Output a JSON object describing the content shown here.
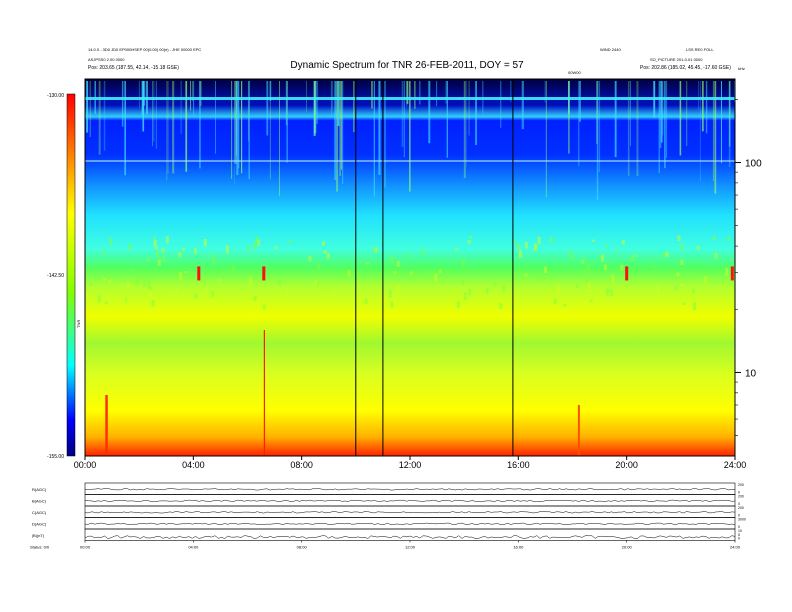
{
  "header": {
    "title": "Dynamic Spectrum for TNR 26-FEB-2011, DOY = 57",
    "left_info_1": "14.0.0 - 3D0 JD0 EP000HSEP 00(0.00) 00(e) - JHE 00000 EPC",
    "left_info_2": "ASJPSS0 2.00 0000",
    "left_pos": "Pos: 203.65 (187.55, 42.14, -15.18 GSE)",
    "right_info_1": "WIND 2440",
    "right_info_2": "LSS RE0 FOLL",
    "right_info_3": "SO_PICTURE 201-0.01 0000",
    "right_pos": "Pos: 202.86 (185.02, 45.45, -17.60 GSE)",
    "center_small": "00W00",
    "right_small": "kHz"
  },
  "chart_data": [
    {
      "type": "heatmap",
      "title": "Dynamic Spectrum for TNR 26-FEB-2011, DOY = 57",
      "x": {
        "ticks": [
          "00:00",
          "04:00",
          "08:00",
          "12:00",
          "16:00",
          "20:00",
          "24:00"
        ],
        "tick_hours": [
          0,
          4,
          8,
          12,
          16,
          20,
          24
        ],
        "range_hours": [
          0,
          24
        ]
      },
      "y_right": {
        "scale": "log",
        "unit": "kHz",
        "ticks": [
          10,
          100
        ],
        "range": [
          4,
          250
        ]
      },
      "colorbar": {
        "label": "TNR",
        "ticks": [
          "-130.00",
          "-142.50",
          "-155.00"
        ],
        "range": [
          -155,
          -130
        ],
        "colors": [
          "#000080",
          "#0000ff",
          "#00ffff",
          "#7fff00",
          "#ffff00",
          "#ff0000"
        ]
      },
      "vertical_lines_hours": [
        10.0,
        11.0,
        15.8
      ],
      "bands": [
        {
          "from": 4.0,
          "to": 5.5,
          "value": -151,
          "note": "red/orange lower band"
        },
        {
          "from": 5.5,
          "to": 15,
          "value": -147,
          "note": "yellow"
        },
        {
          "from": 15,
          "to": 30,
          "value": -143,
          "note": "yellow-green"
        },
        {
          "from": 30,
          "to": 50,
          "value": -140,
          "note": "green"
        },
        {
          "from": 50,
          "to": 110,
          "value": -136,
          "note": "cyan"
        },
        {
          "from": 110,
          "to": 175,
          "value": -132,
          "note": "blue"
        },
        {
          "from": 175,
          "to": 250,
          "value": -130,
          "note": "dark blue / black"
        }
      ],
      "bursts_hours": [
        4.2,
        6.6,
        20.0,
        23.9
      ]
    },
    {
      "type": "line",
      "title": "",
      "x": {
        "ticks": [
          "00:00",
          "04:00",
          "08:00",
          "12:00",
          "16:00",
          "20:00",
          "24:00"
        ],
        "tick_hours": [
          0,
          4,
          8,
          12,
          16,
          20,
          24
        ],
        "range_hours": [
          0,
          24
        ]
      },
      "panels": [
        {
          "label": "R(AGC)",
          "right_ticks": [
            "200",
            "0"
          ]
        },
        {
          "label": "B(AGC)",
          "right_ticks": [
            "200",
            "0"
          ]
        },
        {
          "label": "C(AGC)",
          "right_ticks": [
            "200",
            "0"
          ]
        },
        {
          "label": "D(AGC)",
          "right_ticks": [
            "3000",
            "0"
          ]
        },
        {
          "label": "|B|(nT)",
          "right_ticks": [
            "10",
            "5",
            "0"
          ]
        }
      ],
      "bottom_label": "Status: 0/0",
      "bottom_tick_labels": [
        "00:00",
        "04:00",
        "08:00",
        "12:00",
        "16:00",
        "20:00",
        "24:00"
      ]
    }
  ]
}
